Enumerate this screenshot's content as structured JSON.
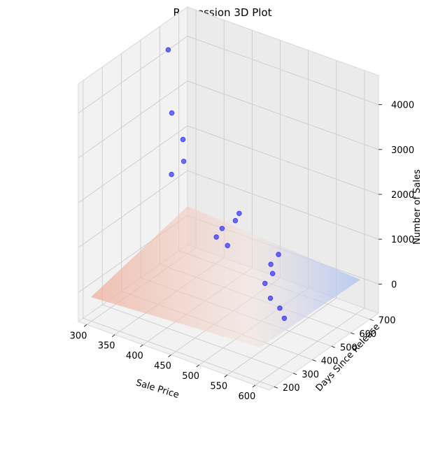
{
  "chart_data": {
    "type": "scatter3d",
    "title": "Regression 3D Plot",
    "xlabel": "Sale Price",
    "ylabel": "Days Since Release",
    "zlabel": "Number of Sales",
    "x_ticks": [
      300,
      350,
      400,
      450,
      500,
      550,
      600
    ],
    "y_ticks": [
      200,
      300,
      400,
      500,
      600,
      700
    ],
    "z_ticks": [
      0,
      1000,
      2000,
      3000,
      4000
    ],
    "grid": true,
    "surface": {
      "label": "regression plane",
      "colormap": "coolwarm"
    },
    "points": [
      {
        "x": 300,
        "y": 600,
        "z": 4200
      },
      {
        "x": 320,
        "y": 560,
        "z": 3000
      },
      {
        "x": 340,
        "y": 560,
        "z": 2500
      },
      {
        "x": 355,
        "y": 520,
        "z": 2200
      },
      {
        "x": 340,
        "y": 500,
        "z": 1900
      },
      {
        "x": 440,
        "y": 560,
        "z": 1300
      },
      {
        "x": 440,
        "y": 540,
        "z": 1200
      },
      {
        "x": 430,
        "y": 500,
        "z": 1100
      },
      {
        "x": 430,
        "y": 470,
        "z": 1000
      },
      {
        "x": 450,
        "y": 470,
        "z": 900
      },
      {
        "x": 510,
        "y": 560,
        "z": 700
      },
      {
        "x": 510,
        "y": 520,
        "z": 600
      },
      {
        "x": 520,
        "y": 500,
        "z": 500
      },
      {
        "x": 520,
        "y": 460,
        "z": 400
      },
      {
        "x": 540,
        "y": 430,
        "z": 250
      },
      {
        "x": 560,
        "y": 420,
        "z": 150
      },
      {
        "x": 575,
        "y": 400,
        "z": 50
      }
    ]
  },
  "colors": {
    "points": "#0000ff",
    "surface_high": "#e8a590",
    "surface_low": "#9fb6f0"
  }
}
